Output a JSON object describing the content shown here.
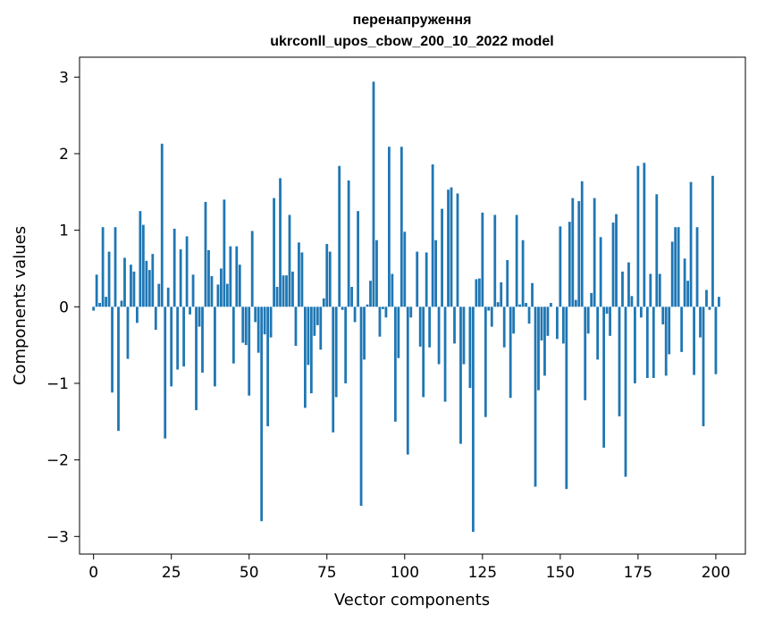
{
  "chart_data": {
    "type": "bar",
    "title_line1": "перенапруження",
    "title_line2": "ukrconll_upos_cbow_200_10_2022 model",
    "xlabel": "Vector components",
    "ylabel": "Components values",
    "xlim": [
      -4.5,
      209.5
    ],
    "ylim": [
      -3.23,
      3.26
    ],
    "x_ticks": [
      0,
      25,
      50,
      75,
      100,
      125,
      150,
      175,
      200
    ],
    "y_ticks": [
      -3,
      -2,
      -1,
      0,
      1,
      2,
      3
    ],
    "y_tick_labels": [
      "−3",
      "−2",
      "−1",
      "0",
      "1",
      "2",
      "3"
    ],
    "bar_color": "#1f77b4",
    "grid": false,
    "values": [
      -0.05,
      0.42,
      0.05,
      1.04,
      0.13,
      0.72,
      -1.12,
      1.04,
      -1.62,
      0.08,
      0.64,
      -0.68,
      0.55,
      0.46,
      -0.21,
      1.25,
      1.07,
      0.6,
      0.48,
      0.69,
      -0.3,
      0.3,
      2.13,
      -1.72,
      0.25,
      -1.04,
      1.02,
      -0.82,
      0.75,
      -0.78,
      0.92,
      -0.1,
      0.42,
      -1.35,
      -0.26,
      -0.86,
      1.37,
      0.74,
      0.4,
      -1.04,
      0.29,
      0.5,
      1.4,
      0.3,
      0.79,
      -0.74,
      0.79,
      0.55,
      -0.47,
      -0.5,
      -1.16,
      0.99,
      -0.2,
      -0.6,
      -2.8,
      -0.36,
      -1.56,
      -0.4,
      1.42,
      0.26,
      1.68,
      0.41,
      0.41,
      1.2,
      0.46,
      -0.51,
      0.84,
      0.71,
      -1.32,
      -0.76,
      -1.13,
      -0.38,
      -0.24,
      -0.56,
      0.11,
      0.82,
      0.72,
      -1.64,
      -1.18,
      1.84,
      -0.04,
      -1.0,
      1.65,
      0.26,
      -0.2,
      1.25,
      -2.6,
      -0.69,
      0.03,
      0.34,
      2.94,
      0.87,
      -0.39,
      -0.03,
      -0.14,
      2.09,
      0.43,
      -1.5,
      -0.67,
      2.09,
      0.98,
      -1.93,
      -0.14,
      0.0,
      0.72,
      -0.52,
      -1.18,
      0.71,
      -0.53,
      1.86,
      0.87,
      -0.75,
      1.28,
      -1.24,
      1.53,
      1.56,
      -0.48,
      1.48,
      -1.79,
      -0.75,
      0.0,
      -1.06,
      -2.94,
      0.36,
      0.37,
      1.23,
      -1.44,
      -0.05,
      -0.26,
      1.2,
      0.06,
      0.32,
      -0.53,
      0.61,
      -1.19,
      -0.35,
      1.2,
      0.03,
      0.87,
      0.05,
      -0.22,
      0.31,
      -2.35,
      -1.09,
      -0.44,
      -0.9,
      -0.38,
      0.05,
      0.0,
      -0.42,
      1.05,
      -0.48,
      -2.38,
      1.11,
      1.42,
      0.09,
      1.38,
      1.64,
      -1.22,
      -0.35,
      0.18,
      1.42,
      -0.69,
      0.91,
      -1.84,
      -0.09,
      -0.38,
      1.1,
      1.21,
      -1.43,
      0.46,
      -2.22,
      0.58,
      0.14,
      -1.0,
      1.84,
      -0.14,
      1.88,
      -0.93,
      0.43,
      -0.93,
      1.47,
      0.43,
      -0.23,
      -0.9,
      -0.62,
      0.85,
      1.04,
      1.04,
      -0.59,
      0.63,
      0.34,
      1.63,
      -0.89,
      1.04,
      -0.4,
      -1.56,
      0.22,
      -0.04,
      1.71,
      -0.88,
      0.13
    ]
  }
}
